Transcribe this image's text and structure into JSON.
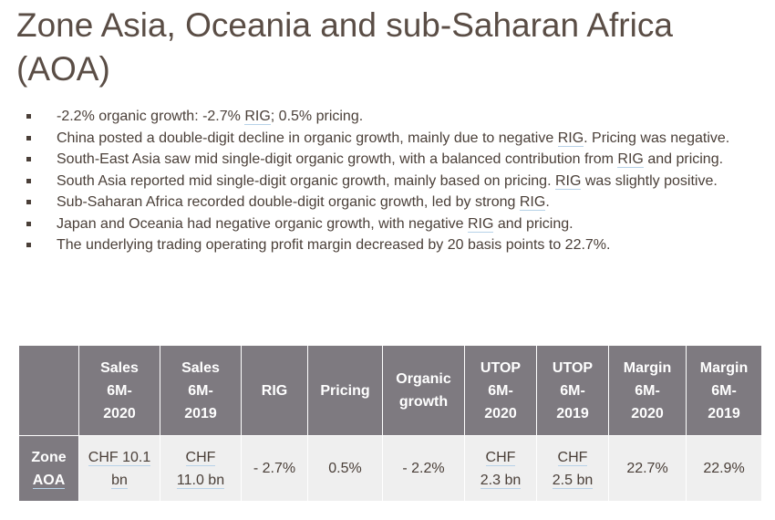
{
  "title": "Zone Asia, Oceania and sub-Saharan Africa (AOA)",
  "bullets": [
    {
      "pre": "-2.2% organic growth: -2.7% ",
      "rig": "RIG",
      "post": "; 0.5% pricing."
    },
    {
      "pre": "China posted a double-digit decline in organic growth, mainly due to negative ",
      "rig": "RIG",
      "post": ". Pricing was negative."
    },
    {
      "pre": "South-East Asia saw mid single-digit organic growth, with a balanced contribution from ",
      "rig": "RIG",
      "post": " and pricing."
    },
    {
      "pre": "South Asia reported mid single-digit organic growth, mainly based on pricing. ",
      "rig": "RIG",
      "post": " was slightly positive."
    },
    {
      "pre": "Sub-Saharan Africa recorded double-digit organic growth, led by strong ",
      "rig": "RIG",
      "post": "."
    },
    {
      "pre": "Japan and Oceania had negative organic growth, with negative ",
      "rig": "RIG",
      "post": " and pricing."
    },
    {
      "pre": "The underlying trading operating profit margin decreased by 20 basis points to 22.7%.",
      "rig": "",
      "post": ""
    }
  ],
  "table": {
    "headers": [
      {
        "l1": "",
        "l2": "",
        "l3": ""
      },
      {
        "l1": "Sales",
        "l2": "6M-",
        "l3": "2020"
      },
      {
        "l1": "Sales",
        "l2": "6M-",
        "l3": "2019"
      },
      {
        "l1": "",
        "l2": "RIG",
        "l3": ""
      },
      {
        "l1": "",
        "l2": "Pricing",
        "l3": ""
      },
      {
        "l1": "Organic",
        "l2": "growth",
        "l3": ""
      },
      {
        "l1": "UTOP",
        "l2": "6M-",
        "l3": "2020"
      },
      {
        "l1": "UTOP",
        "l2": "6M-",
        "l3": "2019"
      },
      {
        "l1": "Margin",
        "l2": "6M-",
        "l3": "2020"
      },
      {
        "l1": "Margin",
        "l2": "6M-",
        "l3": "2019"
      }
    ],
    "row": {
      "label_l1": "Zone",
      "label_l2": "AOA",
      "cells": [
        {
          "l1": "CHF 10.1",
          "l2": "bn"
        },
        {
          "l1": "CHF",
          "l2": "11.0 bn"
        },
        {
          "l1": "- 2.7%",
          "l2": ""
        },
        {
          "l1": "0.5%",
          "l2": ""
        },
        {
          "l1": "- 2.2%",
          "l2": ""
        },
        {
          "l1": "CHF",
          "l2": "2.3 bn"
        },
        {
          "l1": "CHF",
          "l2": "2.5 bn"
        },
        {
          "l1": "22.7%",
          "l2": ""
        },
        {
          "l1": "22.9%",
          "l2": ""
        }
      ]
    }
  }
}
